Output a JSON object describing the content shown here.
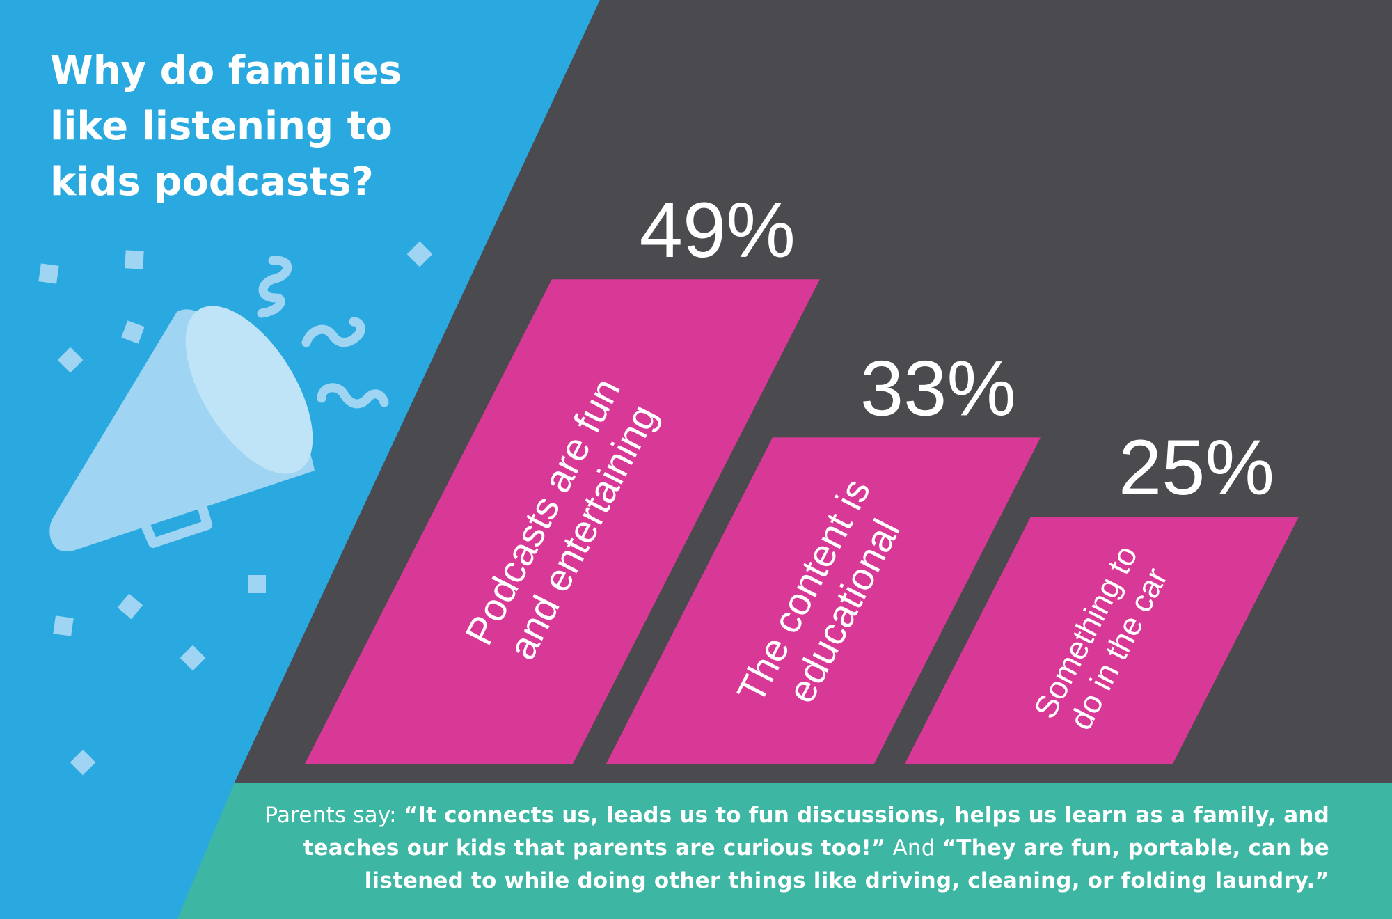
{
  "colors": {
    "blue": "#2aa9e0",
    "dark": "#4b4b4f",
    "pink": "#d93996",
    "teal": "#3db6a3",
    "icon": "#9fd5f2"
  },
  "title": {
    "lines": [
      "Why do families",
      "like listening to",
      "kids podcasts?"
    ]
  },
  "icon": "megaphone-confetti-icon",
  "chart_data": {
    "type": "bar",
    "categories": [
      "Podcasts are fun and entertaining",
      "The content is educational",
      "Something to do in the car"
    ],
    "category_lines": [
      [
        "Podcasts are fun",
        "and entertaining"
      ],
      [
        "The content is",
        "educational"
      ],
      [
        "Something to",
        "do in the car"
      ]
    ],
    "values": [
      49,
      33,
      25
    ],
    "value_labels": [
      "49%",
      "33%",
      "25%"
    ],
    "unit": "%",
    "ylim": [
      0,
      100
    ]
  },
  "quote": {
    "lead": "Parents say: ",
    "quote1": "“It connects us, leads us to fun discussions, helps us learn as a family, and teaches our kids that parents are curious too!”",
    "connector": " And ",
    "quote2": "“They are fun, portable, can be listened to while doing other things like driving, cleaning, or folding laundry.”"
  }
}
